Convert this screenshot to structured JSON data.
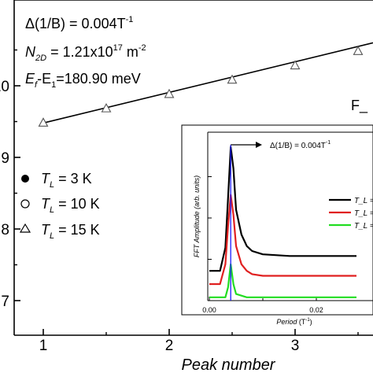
{
  "chart_data": [
    {
      "type": "scatter",
      "xlabel": "Peak number",
      "x_ticks": [
        "1",
        "2",
        "3"
      ],
      "y_ticks_visible": [
        "7",
        "8",
        "9",
        "10"
      ],
      "xlim": [
        0.75,
        3.8
      ],
      "ylim": [
        7.0,
        10.75
      ],
      "series": [
        {
          "name": "T_L = 3 K",
          "marker": "filled-circle",
          "x": [],
          "y": []
        },
        {
          "name": "T_L = 10 K",
          "marker": "open-circle",
          "x": [],
          "y": []
        },
        {
          "name": "T_L = 15 K",
          "marker": "open-triangle",
          "x": [
            1,
            1.5,
            2,
            2.5,
            3,
            3.5
          ],
          "y": [
            9.48,
            9.68,
            9.88,
            10.08,
            10.28,
            10.48
          ]
        }
      ],
      "fit_line": {
        "x": [
          1,
          3.8
        ],
        "y": [
          9.48,
          10.6
        ]
      },
      "annotations": {
        "line1_main": "Δ(1/B) = 0.004T",
        "line1_sup": "-1",
        "line2_main": "N",
        "line2_sub": "2D",
        "line2_mid": " = 1.21x10",
        "line2_sup": "17",
        "line2_unit": " m",
        "line2_unit_sup": "-2",
        "line3_ef": "E",
        "line3_ef_sub": "f",
        "line3_dash": "-E",
        "line3_e1_sub": "1",
        "line3_rest": "=180.90 meV",
        "right_label": "F_"
      },
      "legend": {
        "placement": "left",
        "entries": [
          {
            "prefix": "T",
            "sub": "L",
            "text": " = 3 K"
          },
          {
            "prefix": "T",
            "sub": "L",
            "text": " = 10 K"
          },
          {
            "prefix": "T",
            "sub": "L",
            "text": " = 15 K"
          }
        ]
      },
      "grid": false
    },
    {
      "type": "line",
      "title": "Δ(1/B) = 0.004T",
      "title_sup": "-1",
      "xlabel": "Period",
      "xlabel_unit": " (T",
      "xlabel_unit_sup": "-1",
      "xlabel_unit_end": ")",
      "ylabel": "FFT Amplitude (arb. units)",
      "x_ticks": [
        "0.00",
        "0.02"
      ],
      "xlim": [
        0.0,
        0.0275
      ],
      "peak_marker_x": 0.004,
      "series": [
        {
          "name": "T_L =",
          "color": "#000000",
          "x": [
            0,
            0.002,
            0.003,
            0.0035,
            0.004,
            0.0045,
            0.005,
            0.006,
            0.007,
            0.008,
            0.01,
            0.015,
            0.0275
          ],
          "y": [
            0.18,
            0.18,
            0.32,
            0.62,
            0.93,
            0.8,
            0.55,
            0.4,
            0.33,
            0.3,
            0.28,
            0.27,
            0.27
          ]
        },
        {
          "name": "T_L =",
          "color": "#e02020",
          "x": [
            0,
            0.002,
            0.003,
            0.0035,
            0.004,
            0.0045,
            0.005,
            0.006,
            0.007,
            0.008,
            0.01,
            0.015,
            0.0275
          ],
          "y": [
            0.1,
            0.1,
            0.22,
            0.45,
            0.64,
            0.52,
            0.33,
            0.22,
            0.18,
            0.16,
            0.15,
            0.15,
            0.15
          ]
        },
        {
          "name": "T_L =",
          "color": "#22dd22",
          "x": [
            0,
            0.003,
            0.0035,
            0.004,
            0.0045,
            0.005,
            0.006,
            0.007,
            0.01,
            0.0275
          ],
          "y": [
            0.02,
            0.02,
            0.08,
            0.22,
            0.1,
            0.04,
            0.03,
            0.02,
            0.02,
            0.02
          ]
        }
      ],
      "legend": {
        "placement": "right"
      },
      "colors": {
        "peak_line": "#1a1aff"
      }
    }
  ]
}
